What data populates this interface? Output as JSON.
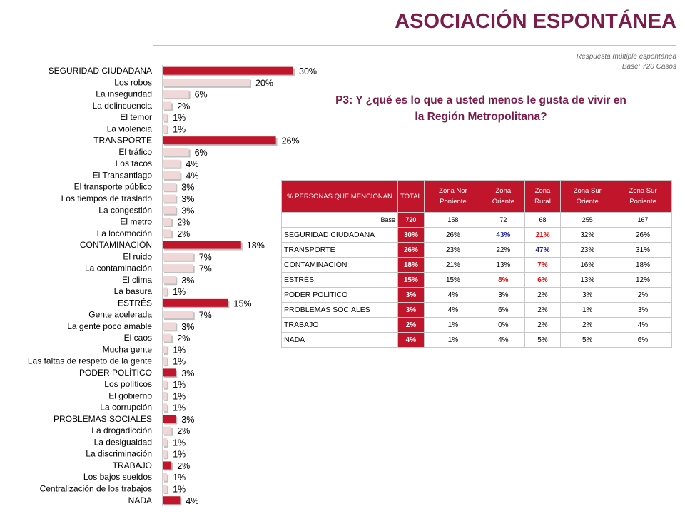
{
  "title": "ASOCIACIÓN ESPONTÁNEA",
  "note_line1": "Respuesta múltiple espontánea",
  "note_line2": "Base:  720 Casos",
  "question": "P3: Y ¿qué es lo que a usted menos le gusta de vivir en la Región Metropolitana?",
  "colors": {
    "main": "#c0152a",
    "sub": "#f0d8d8",
    "accent": "#7b1c4a"
  },
  "chart_data": {
    "type": "bar",
    "orientation": "horizontal",
    "value_unit": "%",
    "categories": [
      "SEGURIDAD CIUDADANA",
      "Los robos",
      "La inseguridad",
      "La delincuencia",
      "El temor",
      "La violencia",
      "TRANSPORTE",
      "El tráfico",
      "Los tacos",
      "El Transantiago",
      "El transporte público",
      "Los tiempos de traslado",
      "La congestión",
      "El metro",
      "La locomoción",
      "CONTAMINACIÓN",
      "El ruido",
      "La contaminación",
      "El clima",
      "La basura",
      "ESTRÉS",
      "Gente acelerada",
      "La gente poco amable",
      "El caos",
      "Mucha gente",
      "Las faltas de respeto de la gente",
      "PODER POLÍTICO",
      "Los políticos",
      "El gobierno",
      "La corrupción",
      "PROBLEMAS SOCIALES",
      "La drogadicción",
      "La desigualdad",
      "La discriminación",
      "TRABAJO",
      "Los bajos sueldos",
      "Centralización de los trabajos",
      "NADA"
    ],
    "values": [
      30,
      20,
      6,
      2,
      1,
      1,
      26,
      6,
      4,
      4,
      3,
      3,
      3,
      2,
      2,
      18,
      7,
      7,
      3,
      1,
      15,
      7,
      3,
      2,
      1,
      1,
      3,
      1,
      1,
      1,
      3,
      2,
      1,
      1,
      2,
      1,
      1,
      4
    ],
    "is_main": [
      true,
      false,
      false,
      false,
      false,
      false,
      true,
      false,
      false,
      false,
      false,
      false,
      false,
      false,
      false,
      true,
      false,
      false,
      false,
      false,
      true,
      false,
      false,
      false,
      false,
      false,
      true,
      false,
      false,
      false,
      true,
      false,
      false,
      false,
      true,
      false,
      false,
      true
    ],
    "value_labels": [
      "30%",
      "20%",
      "6%",
      "2%",
      "1%",
      "1%",
      "26%",
      "6%",
      "4%",
      "4%",
      "3%",
      "3%",
      "3%",
      "2%",
      "2%",
      "18%",
      "7%",
      "7%",
      "3%",
      "1%",
      "15%",
      "7%",
      "3%",
      "2%",
      "1%",
      "1%",
      "3%",
      "1%",
      "1%",
      "1%",
      "3%",
      "2%",
      "1%",
      "1%",
      "2%",
      "1%",
      "1%",
      "4%"
    ]
  },
  "table": {
    "headers": [
      "% PERSONAS QUE MENCIONAN",
      "TOTAL",
      "Zona Nor Poniente",
      "Zona Oriente",
      "Zona Rural",
      "Zona Sur Oriente",
      "Zona Sur Poniente"
    ],
    "base_label": "Base",
    "base": [
      "720",
      "158",
      "72",
      "68",
      "255",
      "167"
    ],
    "rows": [
      {
        "label": "SEGURIDAD CIUDADANA",
        "values": [
          "30%",
          "26%",
          "43%",
          "21%",
          "32%",
          "26%"
        ],
        "marks": [
          "",
          "",
          "hi",
          "lo",
          "",
          ""
        ]
      },
      {
        "label": "TRANSPORTE",
        "values": [
          "26%",
          "23%",
          "22%",
          "47%",
          "23%",
          "31%"
        ],
        "marks": [
          "",
          "",
          "",
          "hi",
          "",
          ""
        ]
      },
      {
        "label": "CONTAMINACIÓN",
        "values": [
          "18%",
          "21%",
          "13%",
          "7%",
          "16%",
          "18%"
        ],
        "marks": [
          "",
          "",
          "",
          "lo",
          "",
          ""
        ]
      },
      {
        "label": "ESTRÉS",
        "values": [
          "15%",
          "15%",
          "8%",
          "6%",
          "13%",
          "12%"
        ],
        "marks": [
          "",
          "",
          "lo",
          "lo",
          "",
          ""
        ]
      },
      {
        "label": "PODER POLÍTICO",
        "values": [
          "3%",
          "4%",
          "3%",
          "2%",
          "3%",
          "2%"
        ],
        "marks": [
          "",
          "",
          "",
          "",
          "",
          ""
        ]
      },
      {
        "label": "PROBLEMAS SOCIALES",
        "values": [
          "3%",
          "4%",
          "6%",
          "2%",
          "1%",
          "3%"
        ],
        "marks": [
          "",
          "",
          "",
          "",
          "",
          ""
        ]
      },
      {
        "label": "TRABAJO",
        "values": [
          "2%",
          "1%",
          "0%",
          "2%",
          "2%",
          "4%"
        ],
        "marks": [
          "",
          "",
          "",
          "",
          "",
          ""
        ]
      },
      {
        "label": "NADA",
        "values": [
          "4%",
          "1%",
          "4%",
          "5%",
          "5%",
          "6%"
        ],
        "marks": [
          "",
          "",
          "",
          "",
          "",
          ""
        ]
      }
    ]
  }
}
